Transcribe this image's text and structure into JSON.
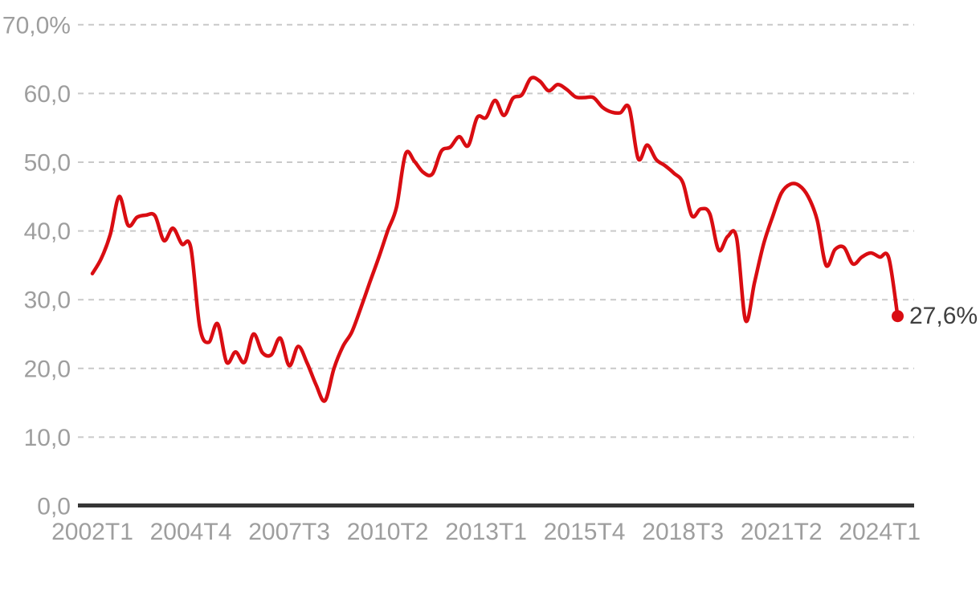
{
  "chart_data": {
    "type": "line",
    "title": "",
    "xlabel": "",
    "ylabel": "",
    "ylim": [
      0,
      70
    ],
    "grid": "horizontal-dashed",
    "legend": "none",
    "end_label": "27,6%",
    "end_value": 27.6,
    "y_tick_values": [
      0,
      10,
      20,
      30,
      40,
      50,
      60,
      70
    ],
    "y_tick_labels": [
      "0,0",
      "10,0",
      "20,0",
      "30,0",
      "40,0",
      "50,0",
      "60,0",
      "70,0%"
    ],
    "x_tick_indices": [
      0,
      11,
      22,
      33,
      44,
      55,
      66,
      77,
      88
    ],
    "x_tick_labels": [
      "2002T1",
      "2004T4",
      "2007T3",
      "2010T2",
      "2013T1",
      "2015T4",
      "2018T3",
      "2021T2",
      "2024T1"
    ],
    "colors": {
      "line": "#d90d12",
      "grid": "#c9c9c9",
      "axis": "#363636",
      "tick_text": "#9e9e9e",
      "end_label_text": "#404040"
    },
    "categories": [
      "2002T1",
      "2002T2",
      "2002T3",
      "2002T4",
      "2003T1",
      "2003T2",
      "2003T3",
      "2003T4",
      "2004T1",
      "2004T2",
      "2004T3",
      "2004T4",
      "2005T1",
      "2005T2",
      "2005T3",
      "2005T4",
      "2006T1",
      "2006T2",
      "2006T3",
      "2006T4",
      "2007T1",
      "2007T2",
      "2007T3",
      "2007T4",
      "2008T1",
      "2008T2",
      "2008T3",
      "2008T4",
      "2009T1",
      "2009T2",
      "2009T3",
      "2009T4",
      "2010T1",
      "2010T2",
      "2010T3",
      "2010T4",
      "2011T1",
      "2011T2",
      "2011T3",
      "2011T4",
      "2012T1",
      "2012T2",
      "2012T3",
      "2012T4",
      "2013T1",
      "2013T2",
      "2013T3",
      "2013T4",
      "2014T1",
      "2014T2",
      "2014T3",
      "2014T4",
      "2015T1",
      "2015T2",
      "2015T3",
      "2015T4",
      "2016T1",
      "2016T2",
      "2016T3",
      "2016T4",
      "2017T1",
      "2017T2",
      "2017T3",
      "2017T4",
      "2018T1",
      "2018T2",
      "2018T3",
      "2018T4",
      "2019T1",
      "2019T2",
      "2019T3",
      "2019T4",
      "2020T1",
      "2020T2",
      "2020T3",
      "2020T4",
      "2021T1",
      "2021T2",
      "2021T3",
      "2021T4",
      "2022T1",
      "2022T2",
      "2022T3",
      "2022T4",
      "2023T1",
      "2023T2",
      "2023T3",
      "2023T4",
      "2024T1",
      "2024T2",
      "2024T3"
    ],
    "values": [
      33.8,
      36.0,
      39.5,
      45.0,
      40.8,
      42.0,
      42.3,
      42.2,
      38.6,
      40.4,
      38.1,
      37.6,
      26.0,
      23.8,
      26.5,
      20.9,
      22.4,
      20.9,
      25.0,
      22.3,
      22.0,
      24.4,
      20.4,
      23.2,
      20.8,
      17.6,
      15.3,
      20.0,
      23.2,
      25.3,
      28.8,
      32.5,
      36.1,
      40.0,
      43.5,
      51.2,
      50.1,
      48.5,
      48.3,
      51.6,
      52.2,
      53.7,
      52.4,
      56.5,
      56.5,
      59.0,
      56.8,
      59.3,
      59.8,
      62.2,
      61.8,
      60.4,
      61.3,
      60.6,
      59.5,
      59.4,
      59.4,
      58.0,
      57.3,
      57.2,
      57.9,
      50.5,
      52.5,
      50.4,
      49.5,
      48.4,
      47.0,
      42.2,
      43.2,
      42.5,
      37.2,
      39.2,
      39.0,
      27.0,
      32.5,
      38.0,
      42.0,
      45.5,
      46.8,
      46.6,
      45.0,
      41.6,
      35.0,
      37.3,
      37.6,
      35.2,
      36.2,
      36.8,
      36.2,
      36.1,
      27.6
    ]
  }
}
